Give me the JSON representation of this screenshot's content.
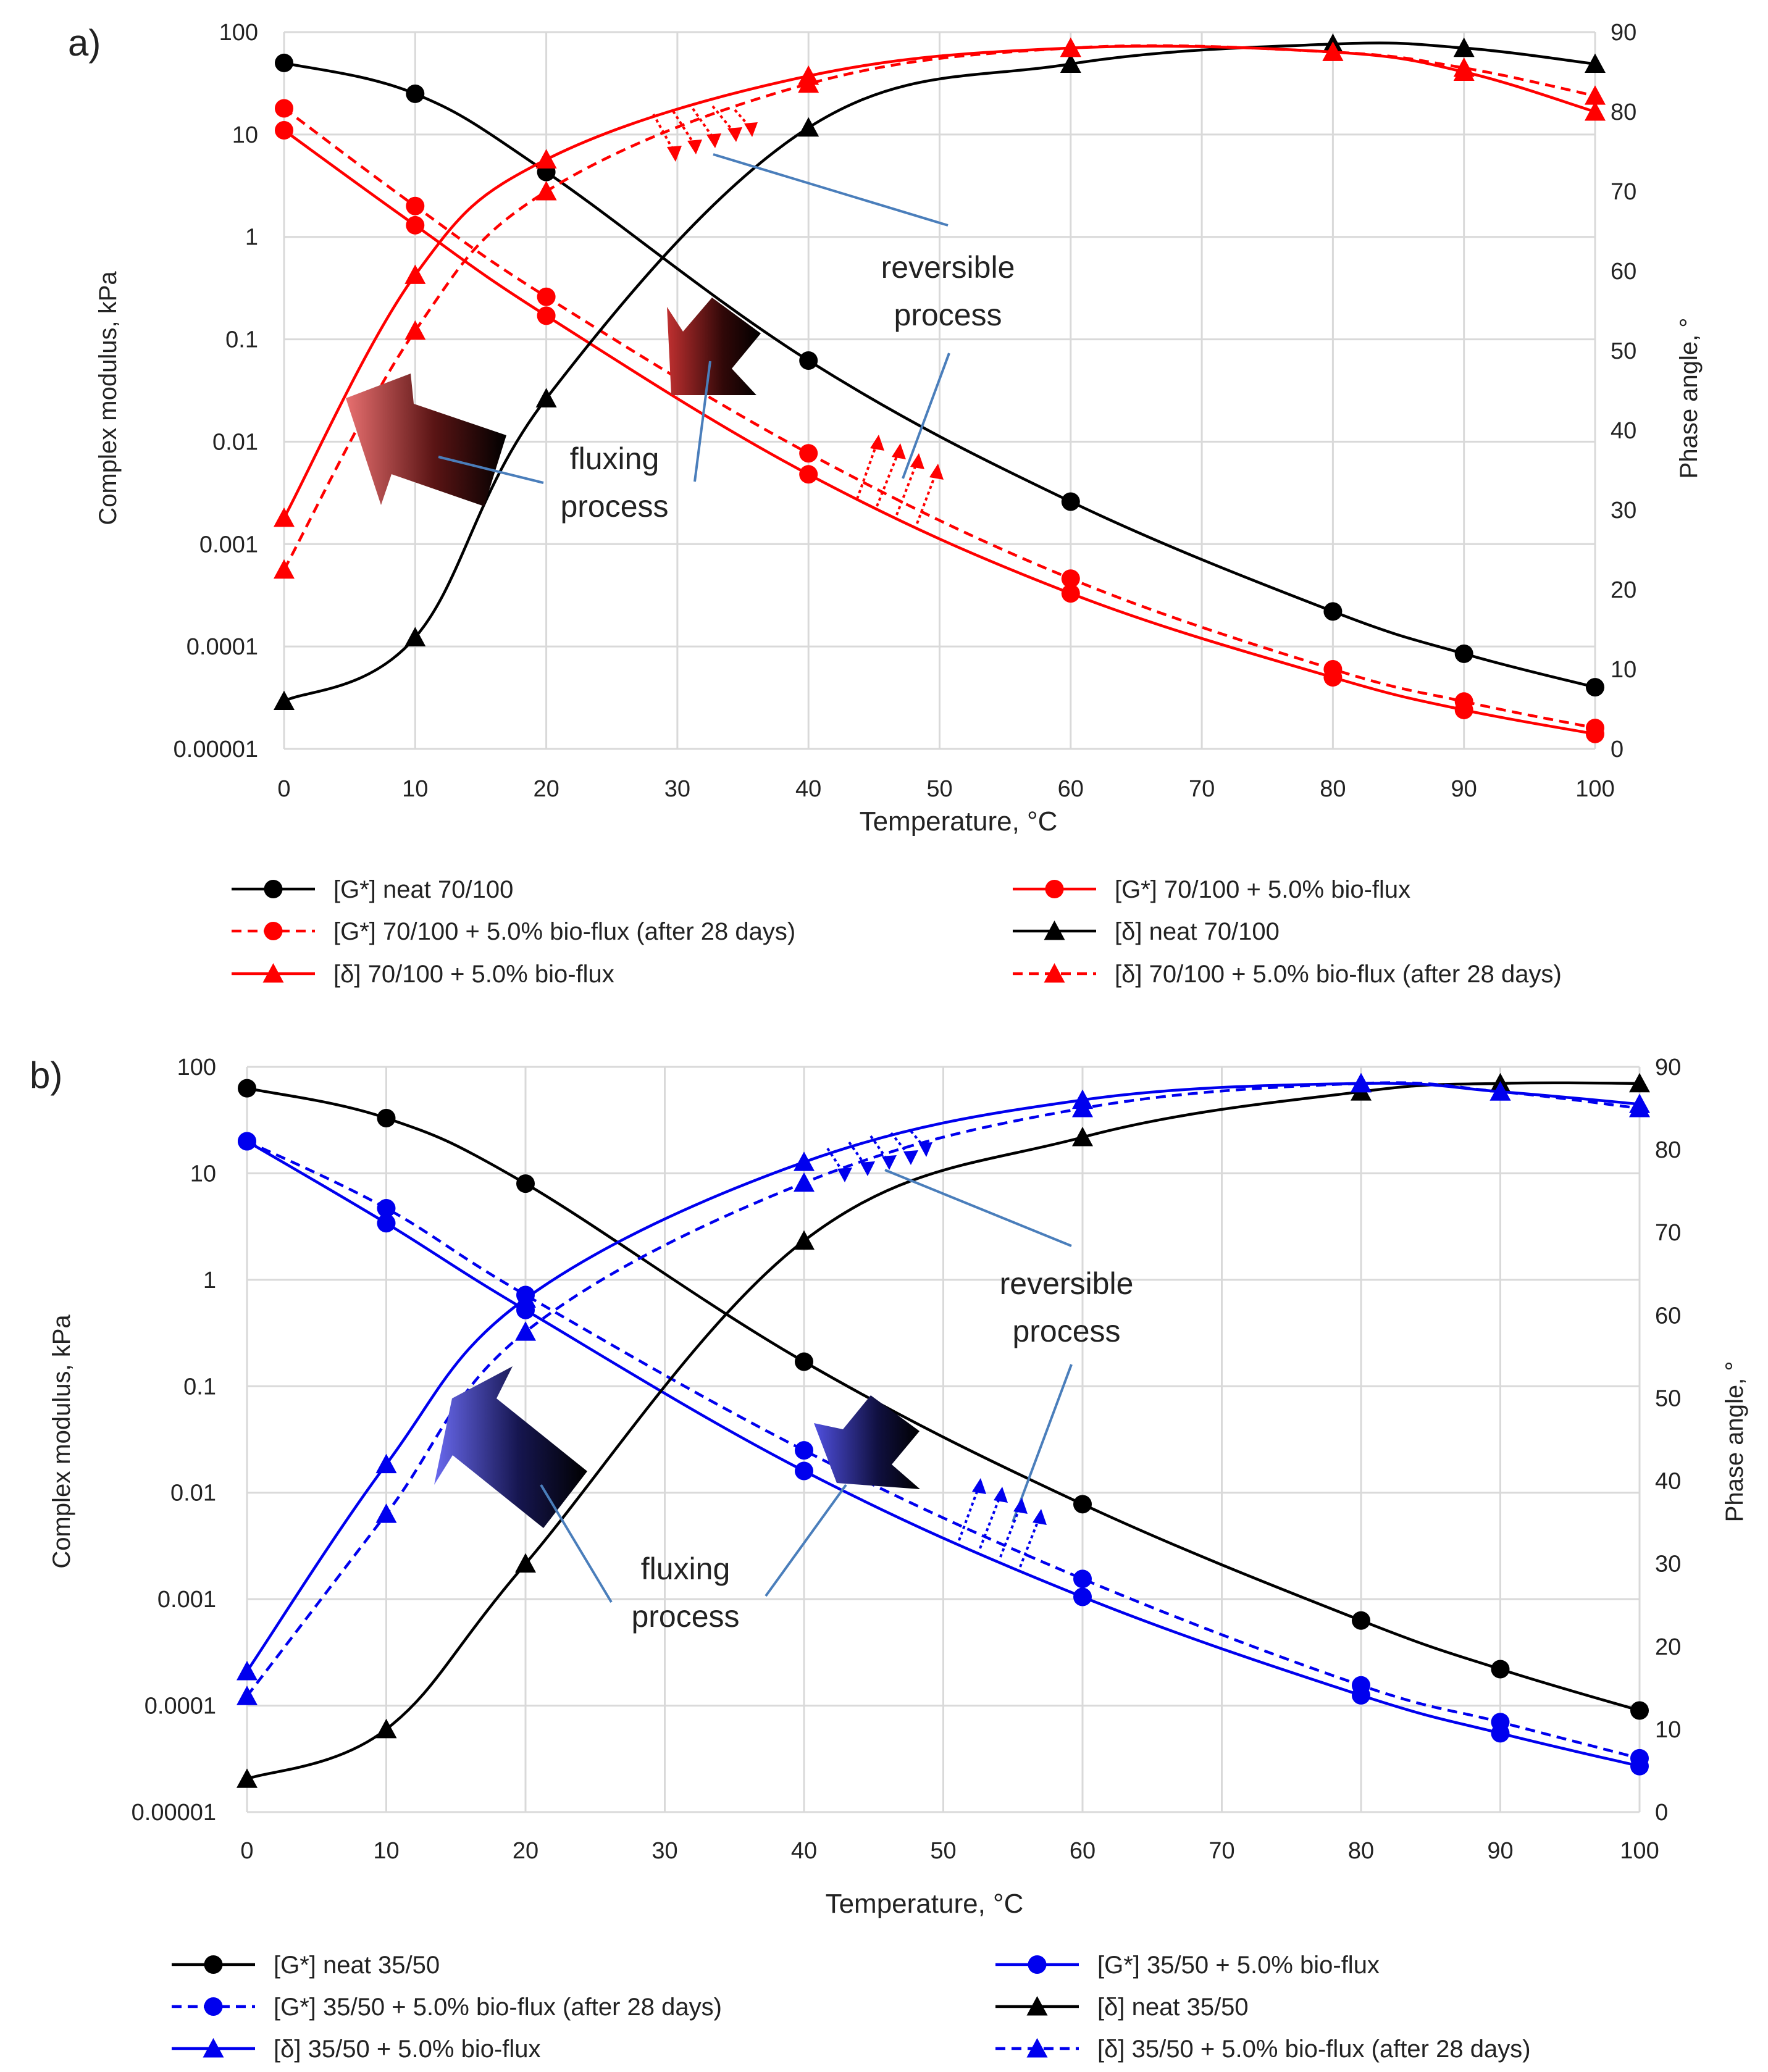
{
  "chart_data": [
    {
      "panel_label": "a)",
      "type": "line",
      "binder": "70/100",
      "xlabel": "Temperature, °C",
      "ylabel_left": "Complex modulus, kPa",
      "ylabel_right": "Phase angle, °",
      "x_ticks": [
        0,
        10,
        20,
        30,
        40,
        50,
        60,
        70,
        80,
        90,
        100
      ],
      "ylim_left": [
        1e-05,
        100
      ],
      "y_ticks_left": [
        "0.00001",
        "0.0001",
        "0.001",
        "0.01",
        "0.1",
        "1",
        "10",
        "100"
      ],
      "ylim_right": [
        0,
        90
      ],
      "y_ticks_right": [
        0,
        10,
        20,
        30,
        40,
        50,
        60,
        70,
        80,
        90
      ],
      "grid": true,
      "annotations": [
        "fluxing process",
        "reversible process"
      ],
      "series": [
        {
          "name": "[G*] neat 70/100",
          "axis": "left",
          "color": "#000000",
          "style": "solid",
          "marker": "circle",
          "x": [
            0,
            10,
            20,
            40,
            60,
            80,
            90,
            100
          ],
          "values": [
            50,
            25,
            4.3,
            0.062,
            0.0026,
            0.00022,
            8.5e-05,
            4e-05
          ]
        },
        {
          "name": "[G*] 70/100 + 5.0% bio-flux",
          "axis": "left",
          "color": "#ff0000",
          "style": "solid",
          "marker": "circle",
          "x": [
            0,
            10,
            20,
            40,
            60,
            80,
            90,
            100
          ],
          "values": [
            11,
            1.3,
            0.17,
            0.0048,
            0.00033,
            5e-05,
            2.4e-05,
            1.4e-05
          ]
        },
        {
          "name": "[G*] 70/100 + 5.0% bio-flux (after 28 days)",
          "axis": "left",
          "color": "#ff0000",
          "style": "dashed",
          "marker": "circle",
          "x": [
            0,
            10,
            20,
            40,
            60,
            80,
            90,
            100
          ],
          "values": [
            18,
            2.0,
            0.26,
            0.0077,
            0.00046,
            6e-05,
            2.9e-05,
            1.6e-05
          ]
        },
        {
          "name": "[δ] neat 70/100",
          "axis": "right",
          "color": "#000000",
          "style": "solid",
          "marker": "triangle",
          "x": [
            0,
            10,
            20,
            40,
            60,
            80,
            90,
            100
          ],
          "values": [
            6,
            14,
            44,
            78,
            86,
            88.5,
            88,
            86
          ]
        },
        {
          "name": "[δ] 70/100 + 5.0% bio-flux",
          "axis": "right",
          "color": "#ff0000",
          "style": "solid",
          "marker": "triangle",
          "x": [
            0,
            10,
            20,
            40,
            60,
            80,
            90,
            100
          ],
          "values": [
            29,
            59.5,
            74,
            84.5,
            88,
            87.5,
            85,
            80
          ]
        },
        {
          "name": "[δ] 70/100 + 5.0% bio-flux (after 28 days)",
          "axis": "right",
          "color": "#ff0000",
          "style": "dashed",
          "marker": "triangle",
          "x": [
            0,
            10,
            20,
            40,
            60,
            80,
            90,
            100
          ],
          "values": [
            22.5,
            52.5,
            70,
            83.5,
            88,
            87.5,
            85.5,
            82
          ]
        }
      ]
    },
    {
      "panel_label": "b)",
      "type": "line",
      "binder": "35/50",
      "xlabel": "Temperature, °C",
      "ylabel_left": "Complex modulus, kPa",
      "ylabel_right": "Phase angle, °",
      "x_ticks": [
        0,
        10,
        20,
        30,
        40,
        50,
        60,
        70,
        80,
        90,
        100
      ],
      "ylim_left": [
        1e-05,
        100
      ],
      "y_ticks_left": [
        "0.00001",
        "0.0001",
        "0.001",
        "0.01",
        "0.1",
        "1",
        "10",
        "100"
      ],
      "ylim_right": [
        0,
        90
      ],
      "y_ticks_right": [
        0,
        10,
        20,
        30,
        40,
        50,
        60,
        70,
        80,
        90
      ],
      "grid": true,
      "annotations": [
        "fluxing process",
        "reversible process"
      ],
      "series": [
        {
          "name": "[G*] neat 35/50",
          "axis": "left",
          "color": "#000000",
          "style": "solid",
          "marker": "circle",
          "x": [
            0,
            10,
            20,
            40,
            60,
            80,
            90,
            100
          ],
          "values": [
            63,
            33,
            8,
            0.17,
            0.0078,
            0.00063,
            0.00022,
            9e-05
          ]
        },
        {
          "name": "[G*] 35/50 + 5.0% bio-flux",
          "axis": "left",
          "color": "#0000ee",
          "style": "solid",
          "marker": "circle",
          "x": [
            0,
            10,
            20,
            40,
            60,
            80,
            90,
            100
          ],
          "values": [
            20,
            3.4,
            0.52,
            0.016,
            0.00105,
            0.000125,
            5.5e-05,
            2.7e-05
          ]
        },
        {
          "name": "[G*] 35/50 + 5.0% bio-flux (after 28 days)",
          "axis": "left",
          "color": "#0000ee",
          "style": "dashed",
          "marker": "circle",
          "x": [
            0,
            10,
            20,
            40,
            60,
            80,
            90,
            100
          ],
          "values": [
            20,
            4.7,
            0.72,
            0.025,
            0.00155,
            0.000155,
            7e-05,
            3.2e-05
          ]
        },
        {
          "name": "[δ] neat 35/50",
          "axis": "right",
          "color": "#000000",
          "style": "solid",
          "marker": "triangle",
          "x": [
            0,
            10,
            20,
            40,
            60,
            80,
            90,
            100
          ],
          "values": [
            4,
            10,
            30,
            69,
            81.5,
            87,
            88,
            88
          ]
        },
        {
          "name": "[δ] 35/50 + 5.0% bio-flux",
          "axis": "right",
          "color": "#0000ee",
          "style": "solid",
          "marker": "triangle",
          "x": [
            0,
            10,
            20,
            40,
            60,
            80,
            90,
            100
          ],
          "values": [
            17,
            42,
            62,
            78.5,
            86,
            88,
            87,
            85.5
          ]
        },
        {
          "name": "[δ] 35/50 + 5.0% bio-flux (after 28 days)",
          "axis": "right",
          "color": "#0000ee",
          "style": "dashed",
          "marker": "triangle",
          "x": [
            0,
            10,
            20,
            40,
            60,
            80,
            90,
            100
          ],
          "values": [
            14,
            36,
            58,
            76,
            85,
            88,
            87,
            85
          ]
        }
      ]
    }
  ],
  "annotation_text": {
    "a": {
      "fluxing_1": "fluxing",
      "fluxing_2": "process",
      "reversible_1": "reversible",
      "reversible_2": "process"
    },
    "b": {
      "fluxing_1": "fluxing",
      "fluxing_2": "process",
      "reversible_1": "reversible",
      "reversible_2": "process"
    }
  },
  "colors": {
    "black": "#000000",
    "red": "#ff0000",
    "blue": "#0000ee",
    "grid": "#d9d9d9",
    "leader_line": "#4a7ebb"
  }
}
